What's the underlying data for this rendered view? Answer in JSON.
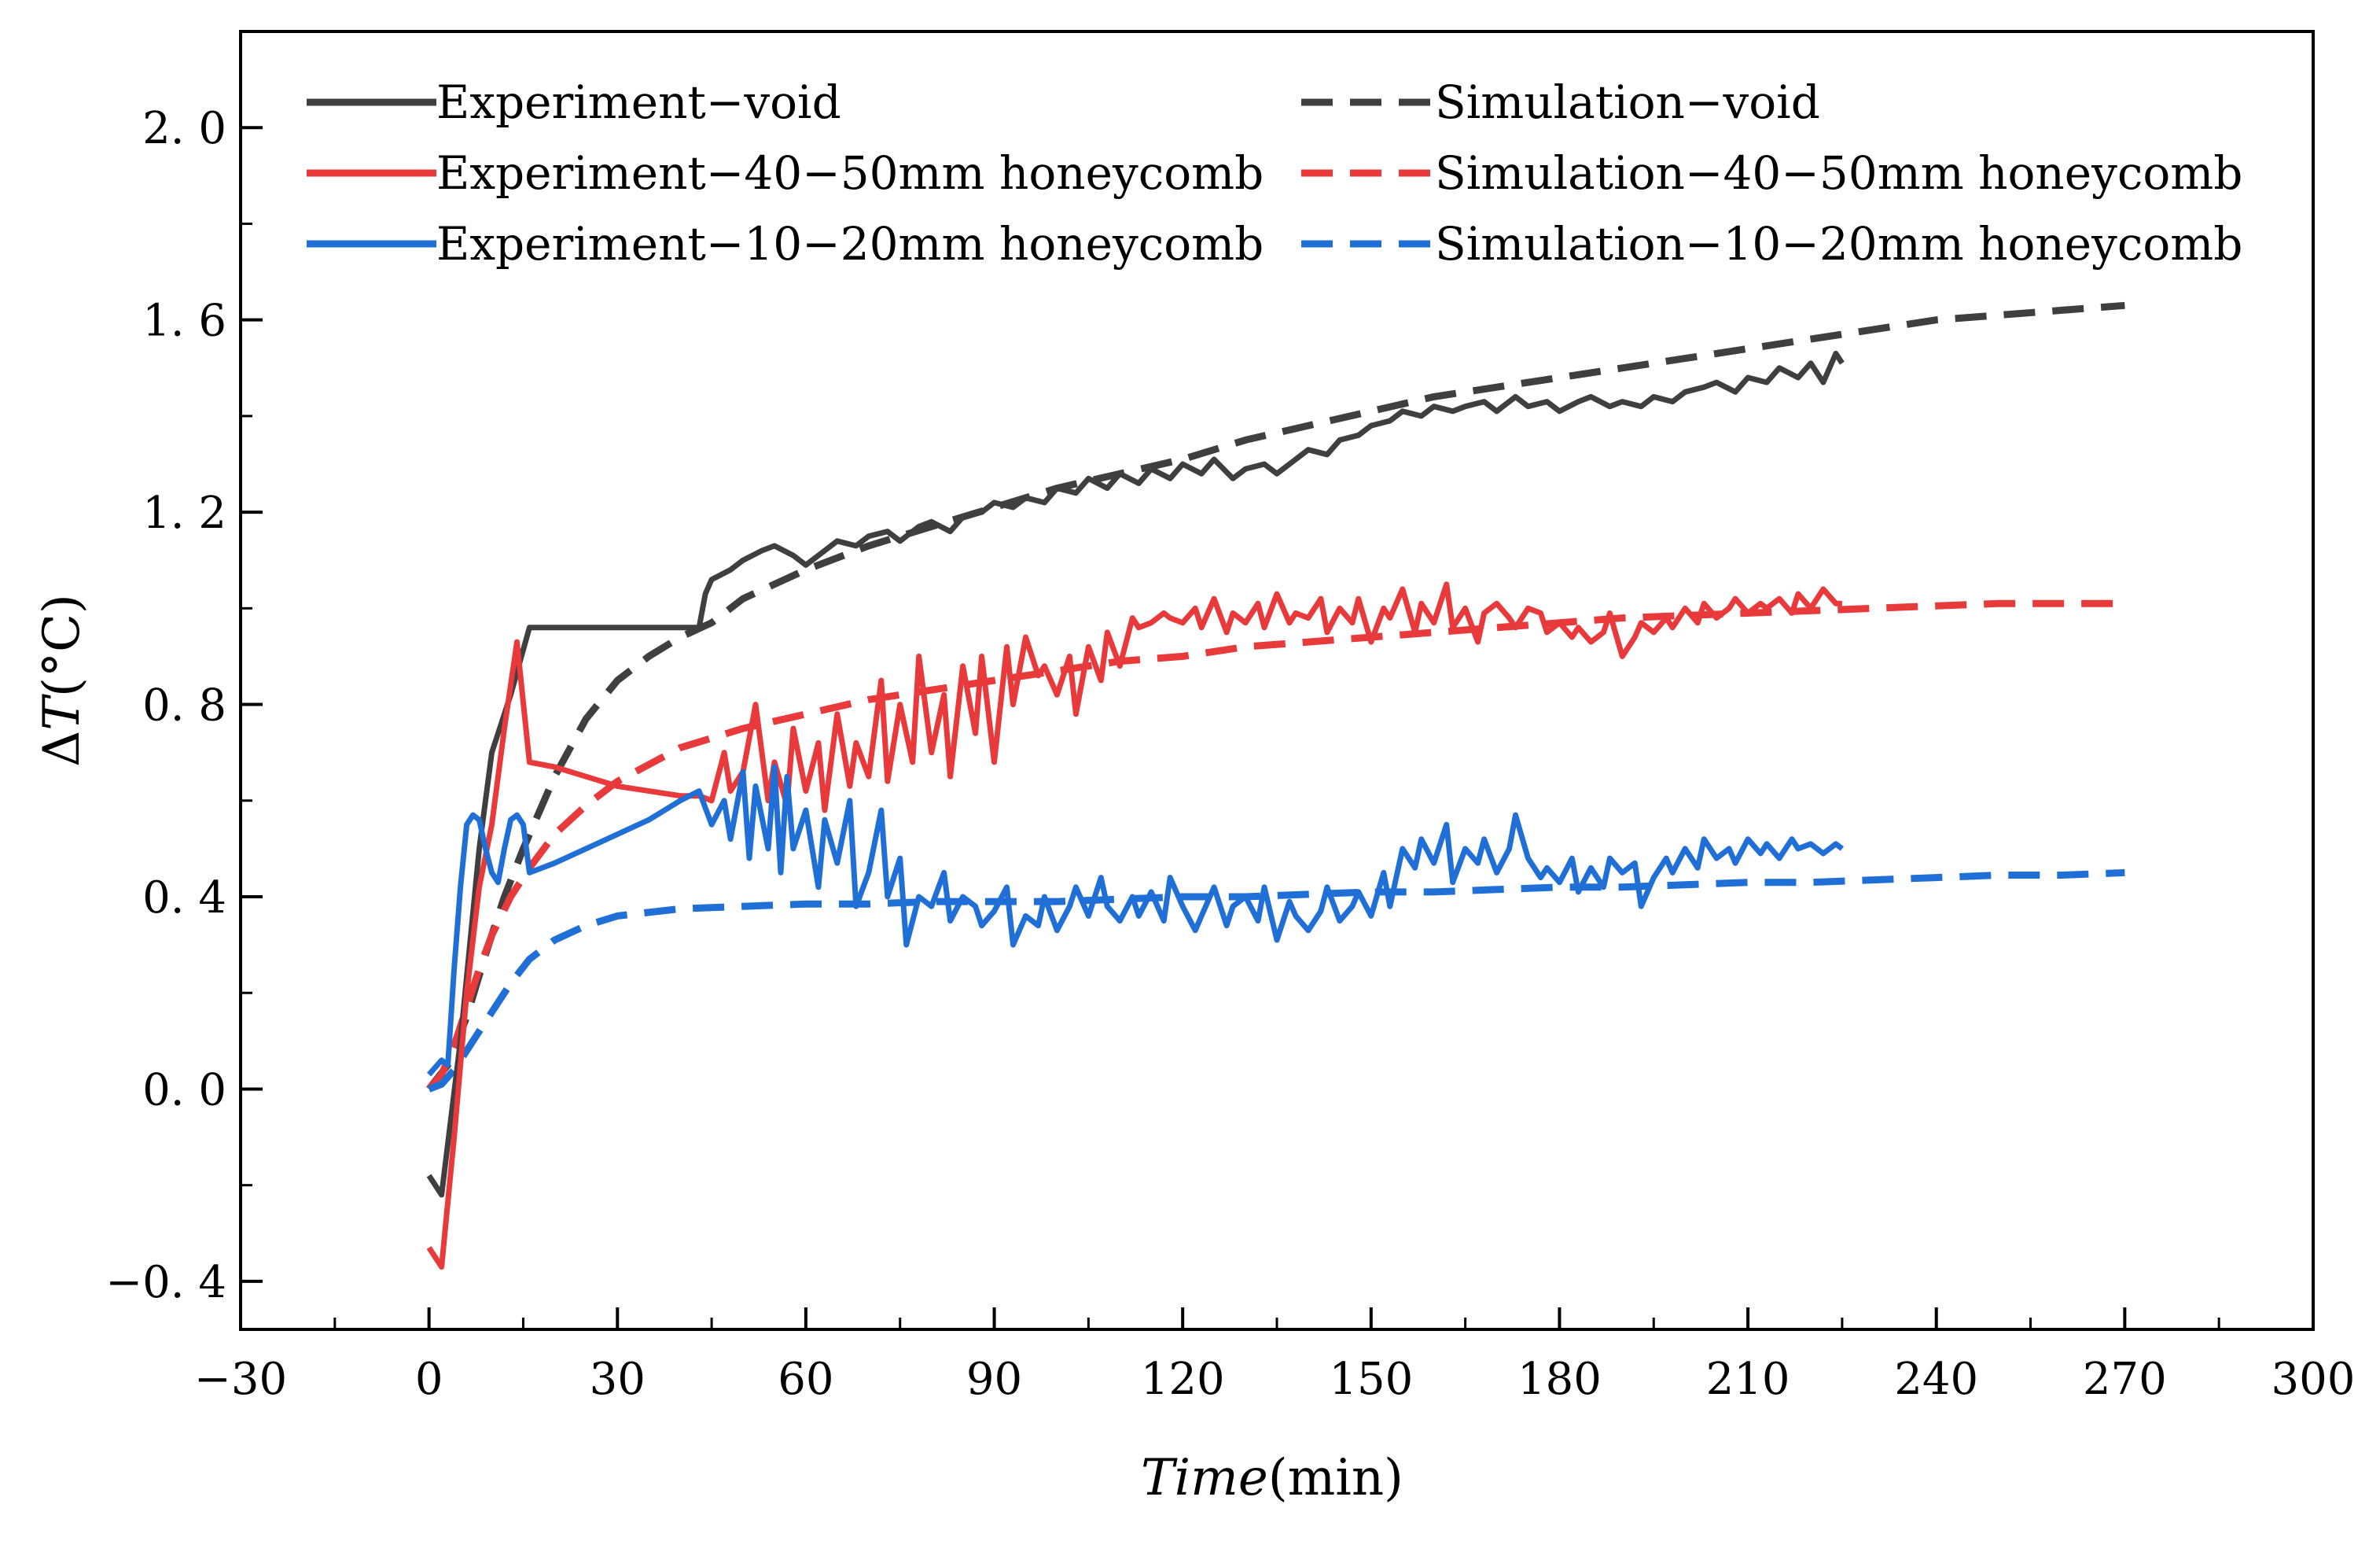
{
  "chart_data": {
    "type": "line",
    "title": "",
    "xlabel": "Time",
    "xlabel_unit": "(min)",
    "ylabel_delta": "Δ",
    "ylabel_var": "T",
    "ylabel_unit": "(°C)",
    "xlim": [
      -30,
      300
    ],
    "ylim": [
      -0.5,
      2.2
    ],
    "x_ticks": [
      -30,
      0,
      30,
      60,
      90,
      120,
      150,
      180,
      210,
      240,
      270,
      300
    ],
    "x_tick_labels": [
      "−30",
      "0",
      "30",
      "60",
      "90",
      "120",
      "150",
      "180",
      "210",
      "240",
      "270",
      "300"
    ],
    "y_ticks": [
      -0.4,
      0.0,
      0.4,
      0.8,
      1.2,
      1.6,
      2.0
    ],
    "y_tick_labels": [
      "−0. 4",
      "0. 0",
      "0. 4",
      "0. 8",
      "1. 2",
      "1. 6",
      "2. 0"
    ],
    "grid": false,
    "legend_position": "top",
    "series": [
      {
        "name": "Experiment−void",
        "color": "#3f3f3f",
        "style": "solid",
        "x": [
          0,
          2,
          5,
          8,
          10,
          13,
          16,
          20,
          25,
          30,
          35,
          40,
          43,
          44,
          45,
          48,
          50,
          53,
          55,
          58,
          60,
          63,
          65,
          68,
          70,
          73,
          75,
          78,
          80,
          83,
          85,
          88,
          90,
          93,
          95,
          98,
          100,
          103,
          105,
          108,
          110,
          113,
          115,
          118,
          120,
          123,
          125,
          128,
          130,
          133,
          135,
          138,
          140,
          143,
          145,
          148,
          150,
          153,
          155,
          158,
          160,
          163,
          165,
          168,
          170,
          173,
          175,
          178,
          180,
          183,
          185,
          188,
          190,
          193,
          195,
          198,
          200,
          203,
          205,
          208,
          210,
          213,
          215,
          218,
          220,
          222,
          224,
          225
        ],
        "y": [
          -0.18,
          -0.22,
          0.1,
          0.5,
          0.7,
          0.82,
          0.96,
          0.96,
          0.96,
          0.96,
          0.96,
          0.96,
          0.96,
          1.03,
          1.06,
          1.08,
          1.1,
          1.12,
          1.13,
          1.11,
          1.09,
          1.12,
          1.14,
          1.13,
          1.15,
          1.16,
          1.14,
          1.17,
          1.18,
          1.16,
          1.19,
          1.2,
          1.22,
          1.21,
          1.23,
          1.22,
          1.25,
          1.24,
          1.27,
          1.25,
          1.28,
          1.26,
          1.29,
          1.27,
          1.3,
          1.28,
          1.31,
          1.27,
          1.29,
          1.3,
          1.28,
          1.31,
          1.33,
          1.32,
          1.35,
          1.36,
          1.38,
          1.39,
          1.41,
          1.4,
          1.42,
          1.41,
          1.42,
          1.43,
          1.41,
          1.44,
          1.42,
          1.43,
          1.41,
          1.43,
          1.44,
          1.42,
          1.43,
          1.42,
          1.44,
          1.43,
          1.45,
          1.46,
          1.47,
          1.45,
          1.48,
          1.47,
          1.5,
          1.48,
          1.51,
          1.47,
          1.53,
          1.51
        ]
      },
      {
        "name": "Simulation−void",
        "color": "#3f3f3f",
        "style": "dashed",
        "x": [
          0,
          3,
          6,
          9,
          12,
          15,
          20,
          25,
          30,
          35,
          40,
          45,
          50,
          60,
          70,
          80,
          90,
          100,
          110,
          120,
          130,
          140,
          150,
          160,
          170,
          180,
          190,
          200,
          210,
          220,
          230,
          240,
          250,
          260,
          270
        ],
        "y": [
          0.0,
          0.05,
          0.15,
          0.28,
          0.4,
          0.5,
          0.65,
          0.77,
          0.85,
          0.9,
          0.94,
          0.97,
          1.02,
          1.08,
          1.13,
          1.17,
          1.21,
          1.25,
          1.28,
          1.31,
          1.35,
          1.38,
          1.41,
          1.44,
          1.46,
          1.48,
          1.5,
          1.52,
          1.54,
          1.56,
          1.58,
          1.6,
          1.61,
          1.62,
          1.63
        ]
      },
      {
        "name": "Experiment−40−50mm honeycomb",
        "color": "#e8393b",
        "style": "solid",
        "x": [
          0,
          1,
          2,
          4,
          6,
          8,
          10,
          12,
          14,
          16,
          20,
          25,
          30,
          35,
          40,
          43,
          45,
          47,
          48,
          50,
          52,
          54,
          55,
          57,
          58,
          60,
          62,
          63,
          65,
          67,
          68,
          70,
          72,
          73,
          75,
          77,
          78,
          80,
          82,
          83,
          85,
          87,
          88,
          90,
          92,
          93,
          95,
          97,
          98,
          100,
          102,
          103,
          105,
          107,
          108,
          110,
          112,
          113,
          115,
          117,
          118,
          120,
          122,
          123,
          125,
          127,
          128,
          130,
          132,
          133,
          135,
          137,
          138,
          140,
          142,
          143,
          145,
          147,
          148,
          150,
          152,
          153,
          155,
          157,
          158,
          160,
          162,
          163,
          165,
          167,
          168,
          170,
          172,
          173,
          175,
          177,
          178,
          180,
          182,
          183,
          185,
          187,
          188,
          190,
          192,
          193,
          195,
          197,
          198,
          200,
          202,
          203,
          205,
          207,
          208,
          210,
          212,
          213,
          215,
          217,
          218,
          220,
          222,
          224,
          225
        ],
        "y": [
          -0.33,
          -0.35,
          -0.37,
          -0.1,
          0.2,
          0.42,
          0.55,
          0.75,
          0.93,
          0.68,
          0.67,
          0.65,
          0.63,
          0.62,
          0.61,
          0.61,
          0.6,
          0.7,
          0.62,
          0.66,
          0.8,
          0.6,
          0.68,
          0.59,
          0.75,
          0.62,
          0.72,
          0.58,
          0.78,
          0.63,
          0.72,
          0.65,
          0.85,
          0.64,
          0.8,
          0.68,
          0.9,
          0.7,
          0.82,
          0.65,
          0.88,
          0.74,
          0.9,
          0.68,
          0.92,
          0.8,
          0.94,
          0.86,
          0.88,
          0.82,
          0.9,
          0.78,
          0.92,
          0.85,
          0.95,
          0.88,
          0.98,
          0.96,
          0.97,
          0.99,
          0.98,
          0.97,
          1.0,
          0.96,
          1.02,
          0.95,
          0.99,
          0.97,
          1.01,
          0.96,
          1.03,
          0.97,
          0.99,
          0.98,
          1.02,
          0.95,
          1.0,
          0.97,
          1.02,
          0.93,
          1.0,
          0.98,
          1.04,
          0.95,
          1.01,
          0.97,
          1.05,
          0.96,
          1.0,
          0.93,
          0.99,
          1.01,
          0.98,
          0.96,
          1.0,
          0.99,
          0.95,
          0.97,
          0.94,
          0.96,
          0.93,
          0.95,
          0.99,
          0.9,
          0.94,
          0.97,
          0.95,
          0.98,
          0.96,
          1.0,
          0.97,
          1.01,
          0.98,
          1.0,
          1.02,
          0.99,
          1.01,
          1.0,
          1.02,
          0.99,
          1.03,
          1.0,
          1.04,
          1.01,
          1.01
        ]
      },
      {
        "name": "Simulation−40−50mm honeycomb",
        "color": "#e8393b",
        "style": "dashed",
        "x": [
          0,
          2,
          4,
          6,
          8,
          10,
          13,
          16,
          20,
          25,
          30,
          40,
          50,
          60,
          70,
          80,
          90,
          100,
          110,
          120,
          130,
          140,
          150,
          160,
          170,
          180,
          190,
          200,
          210,
          220,
          230,
          240,
          250,
          260,
          270
        ],
        "y": [
          0.0,
          0.03,
          0.09,
          0.17,
          0.25,
          0.32,
          0.4,
          0.46,
          0.53,
          0.59,
          0.64,
          0.71,
          0.75,
          0.78,
          0.81,
          0.83,
          0.85,
          0.87,
          0.89,
          0.9,
          0.92,
          0.93,
          0.94,
          0.95,
          0.96,
          0.97,
          0.98,
          0.985,
          0.99,
          0.995,
          1.0,
          1.005,
          1.01,
          1.01,
          1.01
        ]
      },
      {
        "name": "Experiment−10−20mm honeycomb",
        "color": "#1f6fd6",
        "style": "solid",
        "x": [
          0,
          2,
          3,
          4,
          5,
          6,
          7,
          8,
          9,
          10,
          11,
          12,
          13,
          14,
          15,
          16,
          20,
          25,
          30,
          35,
          40,
          43,
          45,
          47,
          48,
          50,
          51,
          52,
          54,
          55,
          56,
          57,
          58,
          60,
          62,
          63,
          65,
          67,
          68,
          70,
          72,
          73,
          75,
          76,
          77,
          78,
          80,
          82,
          83,
          85,
          87,
          88,
          90,
          92,
          93,
          95,
          97,
          98,
          100,
          102,
          103,
          105,
          107,
          108,
          110,
          112,
          113,
          115,
          117,
          118,
          120,
          122,
          123,
          125,
          127,
          128,
          130,
          132,
          133,
          135,
          137,
          138,
          140,
          142,
          143,
          145,
          147,
          148,
          150,
          152,
          153,
          155,
          157,
          158,
          160,
          162,
          163,
          165,
          167,
          168,
          170,
          172,
          173,
          175,
          177,
          178,
          180,
          182,
          183,
          185,
          187,
          188,
          190,
          192,
          193,
          195,
          197,
          198,
          200,
          202,
          203,
          205,
          207,
          208,
          210,
          212,
          213,
          215,
          217,
          218,
          220,
          222,
          224,
          225
        ],
        "y": [
          0.03,
          0.06,
          0.05,
          0.25,
          0.42,
          0.55,
          0.57,
          0.56,
          0.5,
          0.45,
          0.43,
          0.5,
          0.56,
          0.57,
          0.55,
          0.45,
          0.47,
          0.5,
          0.53,
          0.56,
          0.6,
          0.62,
          0.55,
          0.6,
          0.52,
          0.66,
          0.48,
          0.63,
          0.5,
          0.67,
          0.45,
          0.65,
          0.5,
          0.58,
          0.42,
          0.56,
          0.47,
          0.6,
          0.38,
          0.45,
          0.58,
          0.4,
          0.48,
          0.3,
          0.35,
          0.4,
          0.38,
          0.45,
          0.35,
          0.4,
          0.38,
          0.34,
          0.37,
          0.42,
          0.3,
          0.36,
          0.34,
          0.4,
          0.33,
          0.38,
          0.42,
          0.36,
          0.44,
          0.38,
          0.35,
          0.4,
          0.36,
          0.41,
          0.35,
          0.44,
          0.38,
          0.33,
          0.36,
          0.42,
          0.34,
          0.38,
          0.4,
          0.35,
          0.42,
          0.31,
          0.39,
          0.36,
          0.33,
          0.37,
          0.42,
          0.35,
          0.38,
          0.41,
          0.36,
          0.45,
          0.38,
          0.5,
          0.46,
          0.52,
          0.47,
          0.55,
          0.43,
          0.5,
          0.47,
          0.52,
          0.45,
          0.5,
          0.57,
          0.48,
          0.44,
          0.46,
          0.43,
          0.48,
          0.41,
          0.46,
          0.42,
          0.48,
          0.45,
          0.47,
          0.38,
          0.44,
          0.48,
          0.45,
          0.5,
          0.46,
          0.52,
          0.48,
          0.5,
          0.47,
          0.52,
          0.49,
          0.51,
          0.48,
          0.52,
          0.5,
          0.51,
          0.49,
          0.51,
          0.5
        ]
      },
      {
        "name": "Simulation−10−20mm honeycomb",
        "color": "#1f6fd6",
        "style": "dashed",
        "x": [
          0,
          2,
          4,
          6,
          8,
          10,
          13,
          16,
          20,
          25,
          30,
          40,
          50,
          60,
          70,
          80,
          90,
          100,
          110,
          120,
          130,
          140,
          150,
          160,
          170,
          180,
          190,
          200,
          210,
          220,
          230,
          240,
          250,
          260,
          270
        ],
        "y": [
          0.0,
          0.01,
          0.04,
          0.08,
          0.12,
          0.16,
          0.22,
          0.27,
          0.31,
          0.34,
          0.36,
          0.375,
          0.38,
          0.385,
          0.385,
          0.39,
          0.39,
          0.39,
          0.395,
          0.4,
          0.4,
          0.405,
          0.41,
          0.41,
          0.415,
          0.42,
          0.42,
          0.425,
          0.43,
          0.43,
          0.435,
          0.44,
          0.445,
          0.445,
          0.45
        ]
      }
    ]
  }
}
